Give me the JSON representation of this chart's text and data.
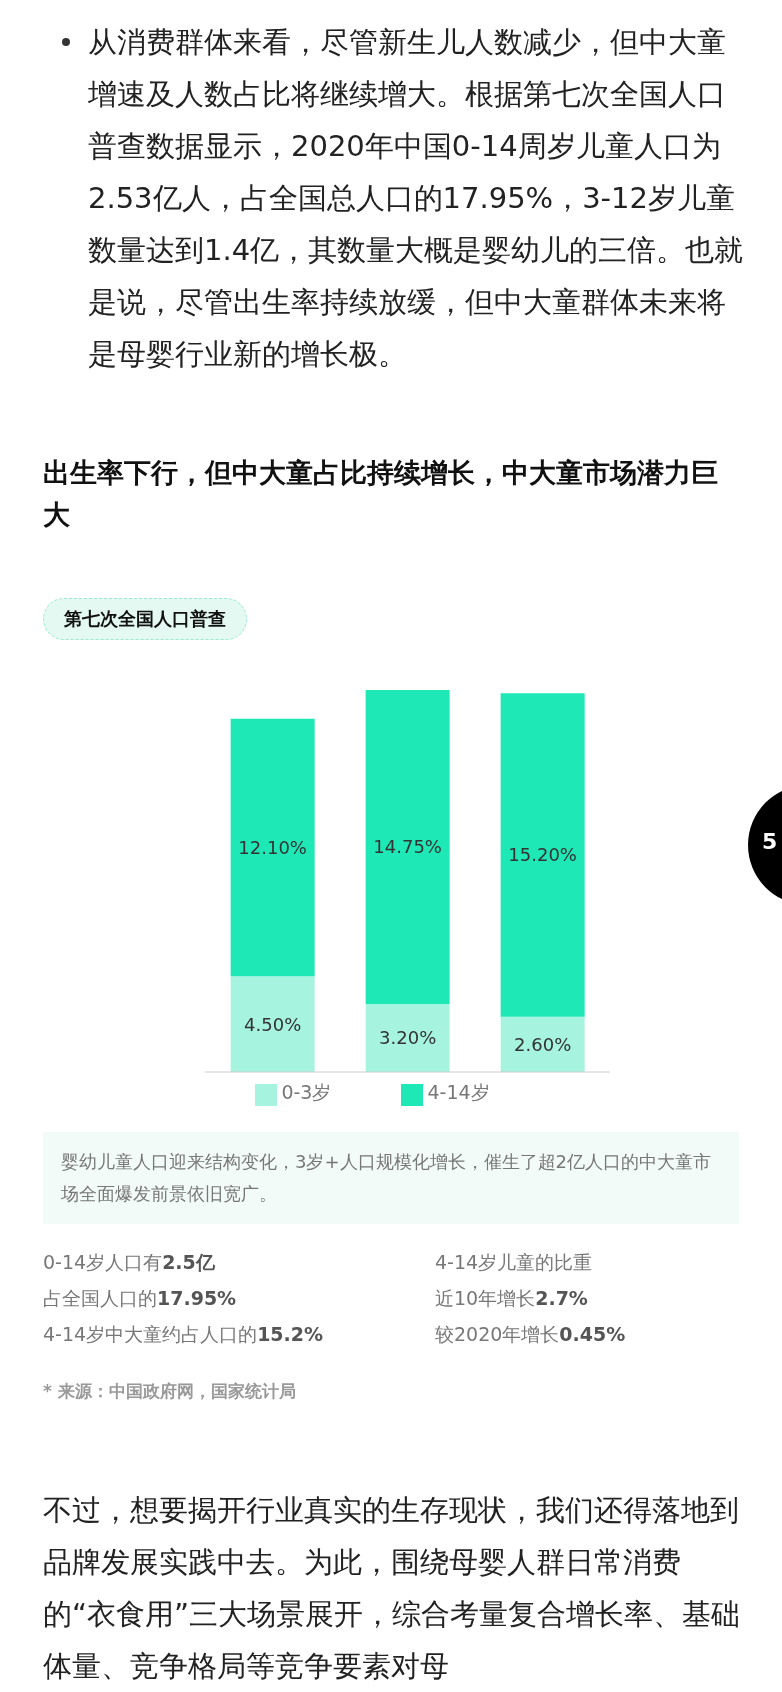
{
  "chart_data": {
    "type": "bar",
    "title": "出生率下行，但中大童占比持续增长，中大童市场潜力巨大",
    "subtitle": "第七次全国人口普查",
    "categories": [
      null,
      null,
      null
    ],
    "stacked": true,
    "legend": "bottom",
    "series": [
      {
        "name": "0-3岁",
        "color": "#a6f3e0",
        "values": [
          4.5,
          3.2,
          2.6
        ],
        "value_labels": [
          "4.50%",
          "3.20%",
          "2.60%"
        ]
      },
      {
        "name": "4-14岁",
        "color": "#1ee8b6",
        "values": [
          12.1,
          14.75,
          15.2
        ],
        "value_labels": [
          "12.10%",
          "14.75%",
          "15.20%"
        ]
      }
    ],
    "annotations": [
      "从消费群体来看，尽管新生儿人数减少，但中大童增速及人数占比将继续增大。根据第七次全国人口普查数据显示，2020年中国0-14周岁儿童人口为2.53亿人，占全国总人口的17.95%，3-12岁儿童数量达到1.4亿，其数量大概是婴幼儿的三倍。也就是说，尽管出生率持续放缓，但中大童群体未来将是母婴行业新的增长极。",
      "婴幼儿童人口迎来结构变化，3岁+人口规模化增长，催生了超2亿人口的中大童市场全面爆发前景依旧宽广。",
      "0-14岁人口有2.5亿",
      "占全国人口的17.95%",
      "4-14岁中大童约占人口的15.2%",
      "4-14岁儿童的比重",
      "近10年增长2.7%",
      "较2020年增长0.45%",
      "* 来源：中国政府网，国家统计局",
      "不过，想要揭开行业真实的生存现状，我们还得落地到品牌发展实践中去。为此，围绕母婴人群日常消费的“衣食用”三大场景展开，综合考量复合增长率、基础体量、竞争格局等竞争要素对母",
      "5"
    ]
  }
}
